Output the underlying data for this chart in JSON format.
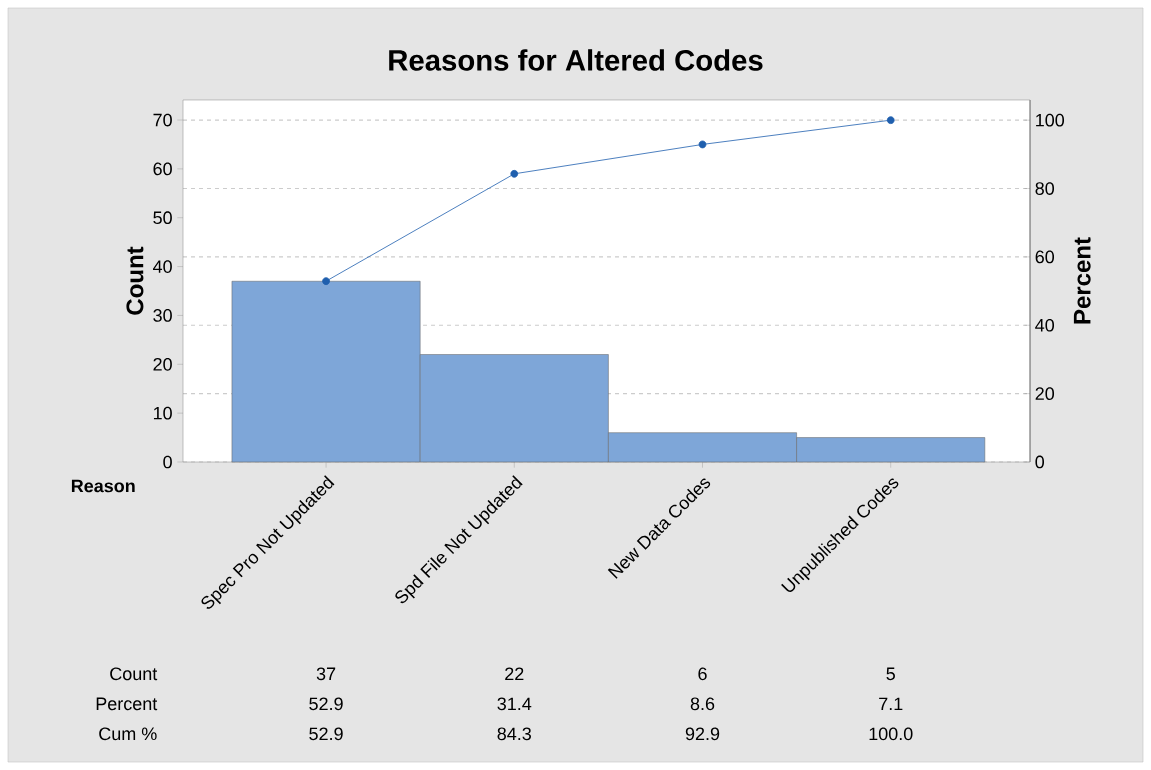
{
  "chart_data": {
    "type": "bar",
    "title": "Reasons for Altered Codes",
    "xlabel": "Reason",
    "ylabel": "Count",
    "y2label": "Percent",
    "categories": [
      "Spec Pro Not Updated",
      "Spd File Not Updated",
      "New Data Codes",
      "Unpublished Codes"
    ],
    "series": [
      {
        "color": "#7ea6d8",
        "values": [
          37,
          22,
          6,
          5
        ],
        "value_labels": [
          "37",
          "22",
          "6",
          "5"
        ]
      },
      {
        "type": "line",
        "axis": "y2",
        "color": "#1f5fae",
        "marker": "circle",
        "values": [
          52.9,
          84.3,
          92.9,
          100.0
        ],
        "value_labels": [
          "52.9",
          "84.3",
          "92.9",
          "100.0"
        ]
      }
    ],
    "ylim": [
      0,
      74.1
    ],
    "yticks": [
      0,
      10,
      20,
      30,
      40,
      50,
      60,
      70
    ],
    "y2lim": [
      0,
      105.9
    ],
    "y2ticks": [
      0,
      20,
      40,
      60,
      80,
      100
    ],
    "grid": "y",
    "annotations": [
      "Count",
      "Percent",
      "Cum %",
      "52.9",
      "31.4",
      "8.6",
      "7.1"
    ]
  }
}
